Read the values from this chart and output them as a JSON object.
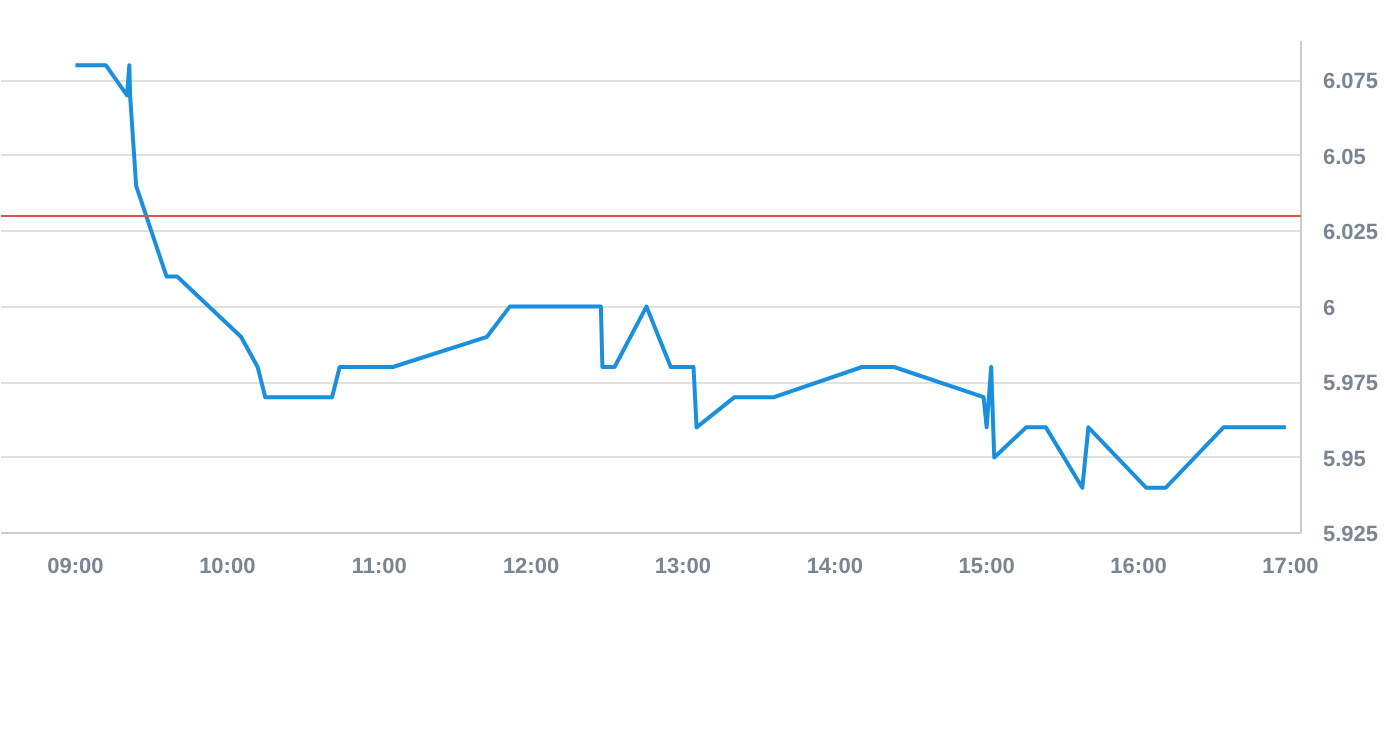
{
  "chart_data": {
    "type": "line",
    "x": [
      9.0,
      9.2,
      9.34,
      9.355,
      9.36,
      9.4,
      9.6,
      9.67,
      10.09,
      10.2,
      10.25,
      10.69,
      10.74,
      11.09,
      11.71,
      11.86,
      12.46,
      12.47,
      12.55,
      12.76,
      12.92,
      13.07,
      13.09,
      13.34,
      13.6,
      14.18,
      14.39,
      14.98,
      15.0,
      15.03,
      15.05,
      15.26,
      15.39,
      15.63,
      15.67,
      16.05,
      16.18,
      16.56,
      16.97
    ],
    "series": [
      {
        "color": "#1a8fdd",
        "values": [
          6.08,
          6.08,
          6.07,
          6.08,
          6.07,
          6.04,
          6.01,
          6.01,
          5.99,
          5.98,
          5.97,
          5.97,
          5.98,
          5.98,
          5.99,
          6.0,
          6.0,
          5.98,
          5.98,
          6.0,
          5.98,
          5.98,
          5.96,
          5.97,
          5.97,
          5.98,
          5.98,
          5.97,
          5.96,
          5.98,
          5.95,
          5.96,
          5.96,
          5.94,
          5.96,
          5.94,
          5.94,
          5.96,
          5.96
        ]
      }
    ],
    "xlim": [
      8.51,
      17.07
    ],
    "ylim": [
      5.925,
      6.088
    ],
    "xticks": [
      {
        "value": 9,
        "label": "09:00"
      },
      {
        "value": 10,
        "label": "10:00"
      },
      {
        "value": 11,
        "label": "11:00"
      },
      {
        "value": 12,
        "label": "12:00"
      },
      {
        "value": 13,
        "label": "13:00"
      },
      {
        "value": 14,
        "label": "14:00"
      },
      {
        "value": 15,
        "label": "15:00"
      },
      {
        "value": 16,
        "label": "16:00"
      },
      {
        "value": 17,
        "label": "17:00"
      }
    ],
    "yticks": [
      5.925,
      5.95,
      5.975,
      6,
      6.025,
      6.05,
      6.075
    ],
    "ref_lines": [
      {
        "axis": "y",
        "value": 6.03,
        "color": "#d9534f"
      }
    ],
    "grid": "y",
    "marker": "none",
    "line_style": "solid"
  }
}
